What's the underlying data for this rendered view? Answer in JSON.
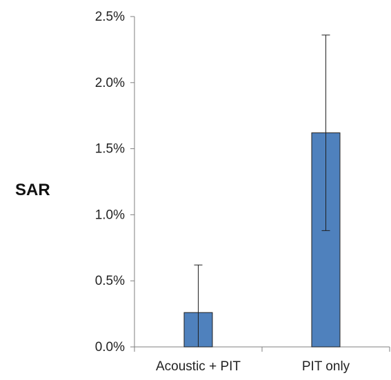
{
  "chart_data": {
    "type": "bar",
    "title": "",
    "xlabel": "",
    "ylabel": "SAR",
    "categories": [
      "Acoustic + PIT",
      "PIT only"
    ],
    "values": [
      0.0026,
      0.0162
    ],
    "error_upper": [
      0.0062,
      0.0236
    ],
    "error_lower": [
      0.0,
      0.0088
    ],
    "ylim": [
      0,
      0.025
    ],
    "yticks": [
      0,
      0.005,
      0.01,
      0.015,
      0.02,
      0.025
    ],
    "ytick_labels": [
      "0.0%",
      "0.5%",
      "1.0%",
      "1.5%",
      "2.0%",
      "2.5%"
    ],
    "grid": false,
    "legend": "none",
    "colors": {
      "bar": "#4f81bd",
      "bar_edge": "#1f1f1f",
      "axis": "#7f7f7f",
      "error": "#1f1f1f"
    }
  }
}
